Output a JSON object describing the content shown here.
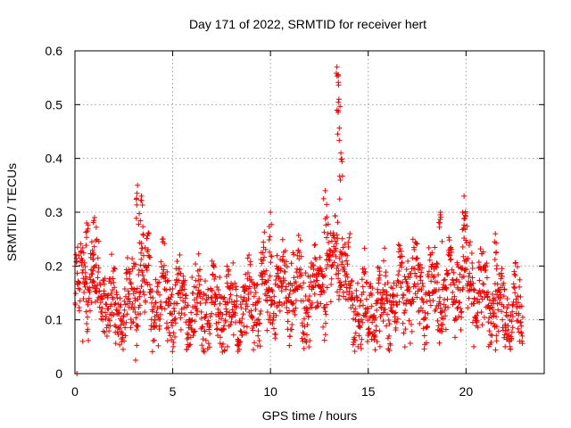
{
  "chart_data": {
    "type": "scatter",
    "title": "Day 171 of 2022, SRMTID for receiver hert",
    "xlabel": "GPS time / hours",
    "ylabel": "SRMTID / TECUs",
    "xlim": [
      0,
      24
    ],
    "ylim": [
      0,
      0.6
    ],
    "x_ticks": [
      0,
      5,
      10,
      15,
      20
    ],
    "x_tick_labels": [
      "0",
      "5",
      "10",
      "15",
      "20"
    ],
    "y_ticks": [
      0,
      0.1,
      0.2,
      0.3,
      0.4,
      0.5,
      0.6
    ],
    "y_tick_labels": [
      "0",
      "0.1",
      "0.2",
      "0.3",
      "0.4",
      "0.5",
      "0.6"
    ],
    "grid": true,
    "marker": "plus",
    "color": "#ee0000",
    "sampling_interval_hours": 0.0125,
    "x_start": 0,
    "x_end": 22.9,
    "series": [
      {
        "name": "SRMTID",
        "envelope_description": "sampled approximation: baseline with daily variability",
        "baseline": [
          {
            "x": 0,
            "y": 0.15
          },
          {
            "x": 0.5,
            "y": 0.17
          },
          {
            "x": 1.0,
            "y": 0.16
          },
          {
            "x": 2.0,
            "y": 0.12
          },
          {
            "x": 3.0,
            "y": 0.13
          },
          {
            "x": 3.3,
            "y": 0.2
          },
          {
            "x": 4.0,
            "y": 0.13
          },
          {
            "x": 5.0,
            "y": 0.14
          },
          {
            "x": 6.0,
            "y": 0.12
          },
          {
            "x": 7.0,
            "y": 0.12
          },
          {
            "x": 8.0,
            "y": 0.11
          },
          {
            "x": 9.0,
            "y": 0.14
          },
          {
            "x": 10.0,
            "y": 0.15
          },
          {
            "x": 11.0,
            "y": 0.16
          },
          {
            "x": 12.0,
            "y": 0.14
          },
          {
            "x": 13.0,
            "y": 0.18
          },
          {
            "x": 13.5,
            "y": 0.25
          },
          {
            "x": 14.0,
            "y": 0.14
          },
          {
            "x": 15.0,
            "y": 0.11
          },
          {
            "x": 16.0,
            "y": 0.13
          },
          {
            "x": 17.0,
            "y": 0.16
          },
          {
            "x": 18.0,
            "y": 0.15
          },
          {
            "x": 19.0,
            "y": 0.14
          },
          {
            "x": 20.0,
            "y": 0.18
          },
          {
            "x": 21.0,
            "y": 0.13
          },
          {
            "x": 22.0,
            "y": 0.12
          },
          {
            "x": 22.9,
            "y": 0.1
          }
        ],
        "spikes": [
          {
            "x": 0.6,
            "y": 0.28
          },
          {
            "x": 1.0,
            "y": 0.29
          },
          {
            "x": 3.2,
            "y": 0.35
          },
          {
            "x": 3.4,
            "y": 0.33
          },
          {
            "x": 10.0,
            "y": 0.3
          },
          {
            "x": 12.8,
            "y": 0.34
          },
          {
            "x": 13.4,
            "y": 0.57
          },
          {
            "x": 13.5,
            "y": 0.51
          },
          {
            "x": 13.6,
            "y": 0.41
          },
          {
            "x": 18.7,
            "y": 0.3
          },
          {
            "x": 19.9,
            "y": 0.33
          },
          {
            "x": 21.5,
            "y": 0.26
          }
        ],
        "lows": [
          {
            "x": 0.1,
            "y": 0.0
          },
          {
            "x": 0.4,
            "y": 0.06
          },
          {
            "x": 3.1,
            "y": 0.025
          },
          {
            "x": 5.8,
            "y": 0.05
          },
          {
            "x": 7.8,
            "y": 0.05
          },
          {
            "x": 15.6,
            "y": 0.05
          },
          {
            "x": 20.4,
            "y": 0.05
          },
          {
            "x": 22.0,
            "y": 0.05
          }
        ]
      }
    ]
  }
}
